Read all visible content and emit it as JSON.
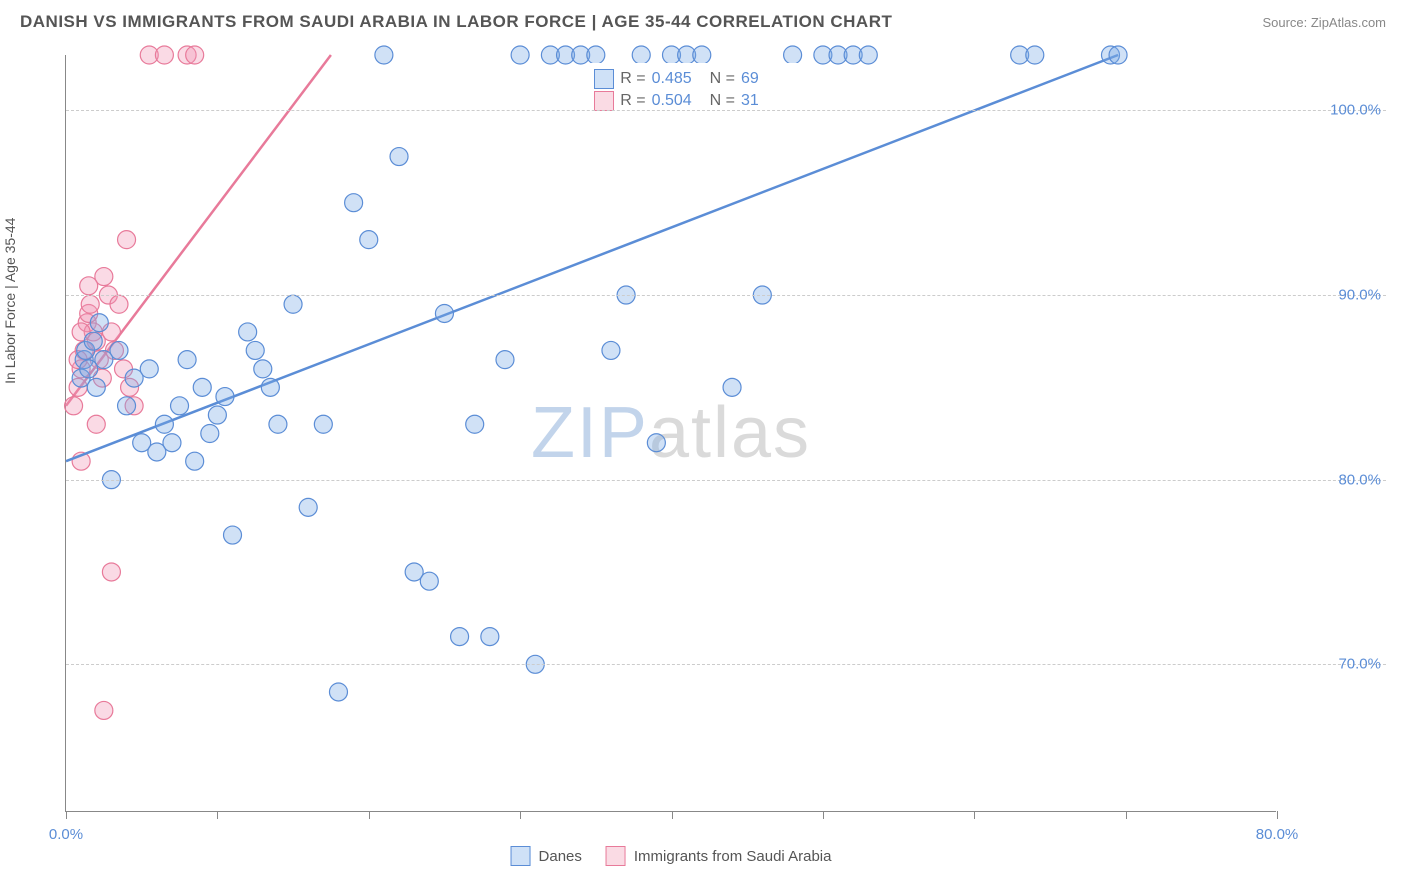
{
  "header": {
    "title": "DANISH VS IMMIGRANTS FROM SAUDI ARABIA IN LABOR FORCE | AGE 35-44 CORRELATION CHART",
    "source": "Source: ZipAtlas.com"
  },
  "axes": {
    "y_label": "In Labor Force | Age 35-44",
    "x_min": 0.0,
    "x_max": 80.0,
    "y_min": 62.0,
    "y_max": 103.0,
    "y_ticks": [
      70.0,
      80.0,
      90.0,
      100.0
    ],
    "y_tick_labels": [
      "70.0%",
      "80.0%",
      "90.0%",
      "100.0%"
    ],
    "x_ticks": [
      0,
      10,
      20,
      30,
      40,
      50,
      60,
      70,
      80
    ],
    "x_tick_labels": {
      "0": "0.0%",
      "80": "80.0%"
    },
    "grid_color": "#cccccc",
    "axis_color": "#888888",
    "tick_label_color": "#5b8dd6",
    "axis_label_color": "#555555",
    "axis_label_fontsize": 14,
    "tick_label_fontsize": 15
  },
  "watermark": {
    "zip": "ZIP",
    "atlas": "atlas"
  },
  "series": {
    "danes": {
      "label": "Danes",
      "color_stroke": "#5b8dd6",
      "color_fill": "rgba(120,170,230,0.35)",
      "swatch_fill": "#cfe1f7",
      "swatch_border": "#5b8dd6",
      "marker_radius": 9,
      "stats": {
        "R_label": "R =",
        "R": "0.485",
        "N_label": "N =",
        "N": "69"
      },
      "trend": {
        "x1": 0,
        "y1": 81.0,
        "x2": 69.5,
        "y2": 103.0,
        "width": 2.5
      },
      "points": [
        [
          1.0,
          85.5
        ],
        [
          1.2,
          86.5
        ],
        [
          1.3,
          87.0
        ],
        [
          1.5,
          86.0
        ],
        [
          1.8,
          87.5
        ],
        [
          2.0,
          85.0
        ],
        [
          2.2,
          88.5
        ],
        [
          2.5,
          86.5
        ],
        [
          3.0,
          80.0
        ],
        [
          3.5,
          87.0
        ],
        [
          4.0,
          84.0
        ],
        [
          4.5,
          85.5
        ],
        [
          5.0,
          82.0
        ],
        [
          5.5,
          86.0
        ],
        [
          6.0,
          81.5
        ],
        [
          6.5,
          83.0
        ],
        [
          7.0,
          82.0
        ],
        [
          7.5,
          84.0
        ],
        [
          8.0,
          86.5
        ],
        [
          8.5,
          81.0
        ],
        [
          9.0,
          85.0
        ],
        [
          9.5,
          82.5
        ],
        [
          10.0,
          83.5
        ],
        [
          10.5,
          84.5
        ],
        [
          11.0,
          77.0
        ],
        [
          12.0,
          88.0
        ],
        [
          12.5,
          87.0
        ],
        [
          13.0,
          86.0
        ],
        [
          13.5,
          85.0
        ],
        [
          14.0,
          83.0
        ],
        [
          15.0,
          89.5
        ],
        [
          16.0,
          78.5
        ],
        [
          17.0,
          83.0
        ],
        [
          18.0,
          68.5
        ],
        [
          19.0,
          95.0
        ],
        [
          20.0,
          93.0
        ],
        [
          21.0,
          103.0
        ],
        [
          22.0,
          97.5
        ],
        [
          23.0,
          75.0
        ],
        [
          24.0,
          74.5
        ],
        [
          25.0,
          89.0
        ],
        [
          26.0,
          71.5
        ],
        [
          27.0,
          83.0
        ],
        [
          28.0,
          71.5
        ],
        [
          29.0,
          86.5
        ],
        [
          30.0,
          103.0
        ],
        [
          31.0,
          70.0
        ],
        [
          32.0,
          103.0
        ],
        [
          33.0,
          103.0
        ],
        [
          34.0,
          103.0
        ],
        [
          35.0,
          103.0
        ],
        [
          36.0,
          87.0
        ],
        [
          37.0,
          90.0
        ],
        [
          38.0,
          103.0
        ],
        [
          39.0,
          82.0
        ],
        [
          40.0,
          103.0
        ],
        [
          41.0,
          103.0
        ],
        [
          42.0,
          103.0
        ],
        [
          44.0,
          85.0
        ],
        [
          46.0,
          90.0
        ],
        [
          48.0,
          103.0
        ],
        [
          50.0,
          103.0
        ],
        [
          51.0,
          103.0
        ],
        [
          52.0,
          103.0
        ],
        [
          53.0,
          103.0
        ],
        [
          63.0,
          103.0
        ],
        [
          64.0,
          103.0
        ],
        [
          69.0,
          103.0
        ],
        [
          69.5,
          103.0
        ]
      ]
    },
    "saudi": {
      "label": "Immigrants from Saudi Arabia",
      "color_stroke": "#e87a9a",
      "color_fill": "rgba(240,150,180,0.35)",
      "swatch_fill": "#fadbe4",
      "swatch_border": "#e87a9a",
      "marker_radius": 9,
      "stats": {
        "R_label": "R =",
        "R": "0.504",
        "N_label": "N =",
        "N": "31"
      },
      "trend": {
        "x1": 0,
        "y1": 84.0,
        "x2": 17.5,
        "y2": 103.0,
        "width": 2.5
      },
      "points": [
        [
          0.5,
          84.0
        ],
        [
          0.8,
          85.0
        ],
        [
          1.0,
          86.0
        ],
        [
          1.2,
          87.0
        ],
        [
          1.4,
          88.5
        ],
        [
          1.5,
          89.0
        ],
        [
          1.6,
          89.5
        ],
        [
          1.8,
          88.0
        ],
        [
          2.0,
          87.5
        ],
        [
          2.2,
          86.5
        ],
        [
          2.4,
          85.5
        ],
        [
          2.5,
          91.0
        ],
        [
          2.8,
          90.0
        ],
        [
          3.0,
          88.0
        ],
        [
          3.2,
          87.0
        ],
        [
          3.5,
          89.5
        ],
        [
          3.8,
          86.0
        ],
        [
          4.0,
          93.0
        ],
        [
          4.2,
          85.0
        ],
        [
          4.5,
          84.0
        ],
        [
          1.0,
          81.0
        ],
        [
          2.0,
          83.0
        ],
        [
          3.0,
          75.0
        ],
        [
          2.5,
          67.5
        ],
        [
          5.5,
          103.0
        ],
        [
          6.5,
          103.0
        ],
        [
          8.0,
          103.0
        ],
        [
          8.5,
          103.0
        ],
        [
          1.5,
          90.5
        ],
        [
          1.0,
          88.0
        ],
        [
          0.8,
          86.5
        ]
      ]
    }
  },
  "stat_box": {
    "left_pct": 43,
    "top_pct": 1
  },
  "background_color": "#ffffff"
}
